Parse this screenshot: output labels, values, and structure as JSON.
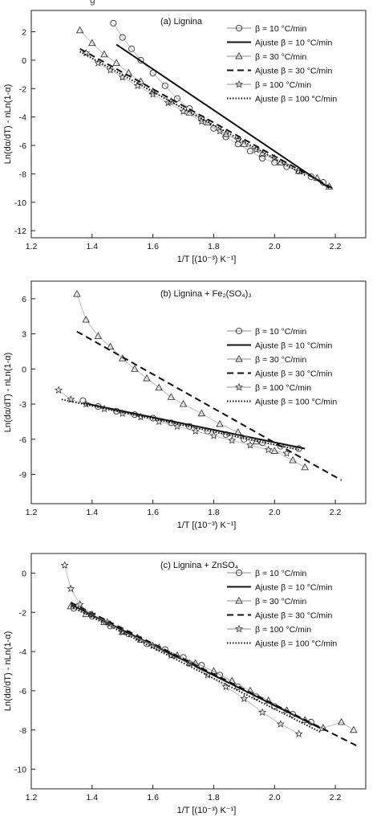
{
  "caption_fragment": "g",
  "chart_data": [
    {
      "id": "a",
      "type": "scatter",
      "title": "(a) Lignina",
      "xlabel": "1/T  [(10⁻³) K⁻¹]",
      "ylabel": "Ln(dα/dT) - nLn(1-α)",
      "xlim": [
        1.2,
        2.3
      ],
      "ylim": [
        -12.5,
        3.5
      ],
      "xticks": [
        1.2,
        1.4,
        1.6,
        1.8,
        2.0,
        2.2
      ],
      "xtick_labels": [
        "1.2",
        "1.4",
        "1.6",
        "1.8",
        "2.0",
        "2.2"
      ],
      "yticks": [
        2,
        0,
        -2,
        -4,
        -6,
        -8,
        -10,
        -12
      ],
      "ytick_labels": [
        "2",
        "0",
        "-2",
        "-4",
        "-6",
        "-8",
        "-10",
        "-12"
      ],
      "legend": [
        "β = 10 °C/min",
        "Ajuste β = 10 °C/min",
        "β = 30 °C/min",
        "Ajuste β = 30 °C/min",
        "β = 100 °C/min",
        "Ajuste β = 100 °C/min"
      ],
      "legend_position": "top-right",
      "grid": false,
      "series": [
        {
          "marker": "circle",
          "x": [
            1.47,
            1.5,
            1.53,
            1.56,
            1.6,
            1.64,
            1.68,
            1.72,
            1.76,
            1.8,
            1.84,
            1.88,
            1.92,
            1.96,
            2.0,
            2.04,
            2.08,
            2.12,
            2.16
          ],
          "y": [
            2.6,
            1.6,
            0.8,
            0.0,
            -0.9,
            -1.8,
            -2.7,
            -3.4,
            -4.1,
            -4.8,
            -5.4,
            -5.9,
            -6.4,
            -6.9,
            -7.2,
            -7.5,
            -7.8,
            -8.2,
            -8.6
          ]
        },
        {
          "marker": "line",
          "x": [
            1.48,
            2.18
          ],
          "y": [
            1.1,
            -9.0
          ]
        },
        {
          "marker": "triangle",
          "x": [
            1.36,
            1.4,
            1.44,
            1.48,
            1.52,
            1.56,
            1.6,
            1.66,
            1.72,
            1.78,
            1.84,
            1.9,
            1.96,
            2.02,
            2.08,
            2.14,
            2.18
          ],
          "y": [
            2.1,
            1.2,
            0.4,
            -0.2,
            -0.9,
            -1.5,
            -2.2,
            -2.9,
            -3.7,
            -4.4,
            -5.2,
            -5.9,
            -6.6,
            -7.2,
            -7.8,
            -8.3,
            -8.9
          ]
        },
        {
          "marker": "dashed",
          "x": [
            1.36,
            2.19
          ],
          "y": [
            0.8,
            -9.0
          ]
        },
        {
          "marker": "star",
          "x": [
            1.38,
            1.42,
            1.46,
            1.5,
            1.55,
            1.6,
            1.65,
            1.7,
            1.76,
            1.82,
            1.88,
            1.94,
            2.0
          ],
          "y": [
            0.5,
            -0.2,
            -0.7,
            -1.2,
            -1.8,
            -2.4,
            -3.0,
            -3.6,
            -4.3,
            -5.0,
            -5.6,
            -6.3,
            -6.9
          ]
        },
        {
          "marker": "dotted",
          "x": [
            1.36,
            2.1
          ],
          "y": [
            0.6,
            -8.1
          ]
        }
      ]
    },
    {
      "id": "b",
      "type": "scatter",
      "title": "(b) Lignina + Fe₂(SO₄)₃",
      "xlabel": "1/T  [(10⁻³) K⁻¹]",
      "ylabel": "Ln(dα/dT) - nLn(1-α)",
      "xlim": [
        1.2,
        2.3
      ],
      "ylim": [
        -11.5,
        7.5
      ],
      "xticks": [
        1.2,
        1.4,
        1.6,
        1.8,
        2.0,
        2.2
      ],
      "xtick_labels": [
        "1.2",
        "1.4",
        "1.6",
        "1.8",
        "2.0",
        "2.2"
      ],
      "yticks": [
        6,
        3,
        0,
        -3,
        -6,
        -9
      ],
      "ytick_labels": [
        "6",
        "3",
        "0",
        "-3",
        "-6",
        "-9"
      ],
      "legend": [
        "β = 10 °C/min",
        "Ajuste β = 10 °C/min",
        "β = 30 °C/min",
        "Ajuste β = 30 °C/min",
        "β = 100 °C/min",
        "Ajuste β = 100 °C/min"
      ],
      "legend_position": "right",
      "grid": false,
      "series": [
        {
          "marker": "circle",
          "x": [
            1.37,
            1.42,
            1.48,
            1.54,
            1.6,
            1.66,
            1.72,
            1.78,
            1.84,
            1.9,
            1.96,
            2.02,
            2.08
          ],
          "y": [
            -2.7,
            -3.2,
            -3.6,
            -3.9,
            -4.2,
            -4.6,
            -4.9,
            -5.3,
            -5.6,
            -6.0,
            -6.3,
            -6.6,
            -6.8
          ]
        },
        {
          "marker": "line",
          "x": [
            1.37,
            2.1
          ],
          "y": [
            -2.9,
            -6.8
          ]
        },
        {
          "marker": "triangle",
          "x": [
            1.35,
            1.38,
            1.42,
            1.46,
            1.5,
            1.54,
            1.58,
            1.62,
            1.66,
            1.7,
            1.76,
            1.82,
            1.88,
            1.94,
            2.0,
            2.06,
            2.1
          ],
          "y": [
            6.4,
            4.2,
            2.8,
            1.9,
            0.9,
            0.0,
            -0.8,
            -1.6,
            -2.4,
            -3.0,
            -3.8,
            -4.7,
            -5.4,
            -6.2,
            -7.0,
            -7.8,
            -8.4
          ]
        },
        {
          "marker": "dashed",
          "x": [
            1.35,
            2.22
          ],
          "y": [
            3.2,
            -9.5
          ]
        },
        {
          "marker": "star",
          "x": [
            1.29,
            1.33,
            1.38,
            1.44,
            1.5,
            1.56,
            1.62,
            1.68,
            1.74,
            1.8,
            1.86,
            1.92,
            1.98,
            2.04
          ],
          "y": [
            -1.8,
            -2.6,
            -3.0,
            -3.4,
            -3.8,
            -4.1,
            -4.5,
            -4.9,
            -5.3,
            -5.7,
            -6.1,
            -6.5,
            -6.9,
            -7.2
          ]
        },
        {
          "marker": "dotted",
          "x": [
            1.3,
            2.08
          ],
          "y": [
            -2.6,
            -6.9
          ]
        }
      ]
    },
    {
      "id": "c",
      "type": "scatter",
      "title": "(c) Lignina + ZnSO₄",
      "xlabel": "1/T  [(10⁻³) K⁻¹]",
      "ylabel": "Ln(dα/dT) - nLn(1-α)",
      "xlim": [
        1.2,
        2.3
      ],
      "ylim": [
        -11,
        1
      ],
      "xticks": [
        1.2,
        1.4,
        1.6,
        1.8,
        2.0,
        2.2
      ],
      "xtick_labels": [
        "1.2",
        "1.4",
        "1.6",
        "1.8",
        "2.0",
        "2.2"
      ],
      "yticks": [
        0,
        -2,
        -4,
        -6,
        -8,
        -10
      ],
      "ytick_labels": [
        "0",
        "-2",
        "-4",
        "-6",
        "-8",
        "-10"
      ],
      "legend": [
        "β = 10 °C/min",
        "Ajuste β = 10 °C/min",
        "β = 30 °C/min",
        "Ajuste β = 30 °C/min",
        "β = 100 °C/min",
        "Ajuste β = 100 °C/min"
      ],
      "legend_position": "top-right",
      "grid": false,
      "series": [
        {
          "marker": "circle",
          "x": [
            1.34,
            1.4,
            1.46,
            1.52,
            1.58,
            1.64,
            1.7,
            1.76,
            1.82,
            1.88,
            1.94,
            2.0,
            2.06,
            2.12
          ],
          "y": [
            -1.8,
            -2.2,
            -2.7,
            -3.1,
            -3.6,
            -3.9,
            -4.3,
            -4.7,
            -5.2,
            -5.8,
            -6.3,
            -6.8,
            -7.2,
            -7.6
          ]
        },
        {
          "marker": "line",
          "x": [
            1.33,
            2.15
          ],
          "y": [
            -1.6,
            -7.9
          ]
        },
        {
          "marker": "triangle",
          "x": [
            1.33,
            1.38,
            1.44,
            1.5,
            1.56,
            1.62,
            1.68,
            1.74,
            1.8,
            1.86,
            1.92,
            1.98,
            2.04,
            2.1,
            2.16,
            2.22,
            2.26
          ],
          "y": [
            -1.7,
            -2.1,
            -2.5,
            -3.0,
            -3.4,
            -3.8,
            -4.2,
            -4.6,
            -5.0,
            -5.5,
            -6.0,
            -6.5,
            -7.0,
            -7.5,
            -7.9,
            -7.6,
            -8.0
          ]
        },
        {
          "marker": "dashed",
          "x": [
            1.33,
            2.27
          ],
          "y": [
            -1.5,
            -8.8
          ]
        },
        {
          "marker": "star",
          "x": [
            1.31,
            1.33,
            1.36,
            1.4,
            1.45,
            1.5,
            1.55,
            1.6,
            1.66,
            1.72,
            1.78,
            1.84,
            1.9,
            1.96,
            2.02,
            2.08
          ],
          "y": [
            0.4,
            -0.8,
            -1.6,
            -2.1,
            -2.5,
            -3.0,
            -3.3,
            -3.7,
            -4.2,
            -4.6,
            -5.2,
            -5.8,
            -6.4,
            -7.1,
            -7.7,
            -8.2
          ]
        },
        {
          "marker": "dotted",
          "x": [
            1.33,
            2.15
          ],
          "y": [
            -1.7,
            -8.1
          ]
        }
      ]
    }
  ]
}
